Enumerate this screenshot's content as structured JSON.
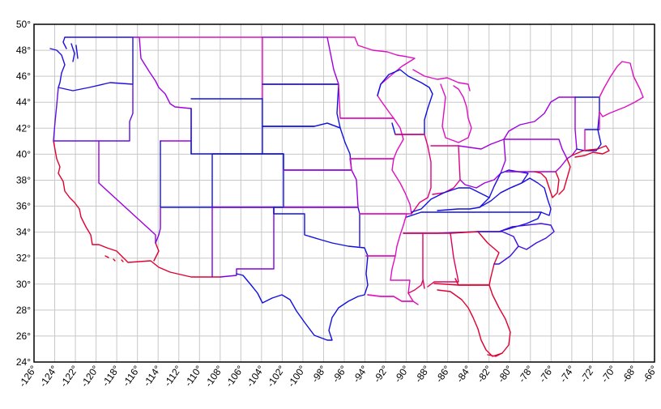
{
  "map": {
    "lon_range": [
      -126,
      -66
    ],
    "lat_range": [
      24,
      50
    ],
    "grid": true,
    "x_ticks": [
      "-126°",
      "-124°",
      "-122°",
      "-120°",
      "-118°",
      "-116°",
      "-114°",
      "-112°",
      "-110°",
      "-108°",
      "-106°",
      "-104°",
      "-102°",
      "-100°",
      "-98°",
      "-96°",
      "-94°",
      "-92°",
      "-90°",
      "-88°",
      "-86°",
      "-84°",
      "-82°",
      "-80°",
      "-78°",
      "-76°",
      "-74°",
      "-72°",
      "-70°",
      "-68°",
      "-66°"
    ],
    "y_ticks": [
      "24°",
      "26°",
      "28°",
      "30°",
      "32°",
      "34°",
      "36°",
      "38°",
      "40°",
      "42°",
      "44°",
      "46°",
      "48°",
      "50°"
    ],
    "colors": {
      "west": "#e00030",
      "mountain": "#1010e0",
      "plains": "#a000e0",
      "east": "#e010c0",
      "northeast": "#e00080"
    }
  }
}
